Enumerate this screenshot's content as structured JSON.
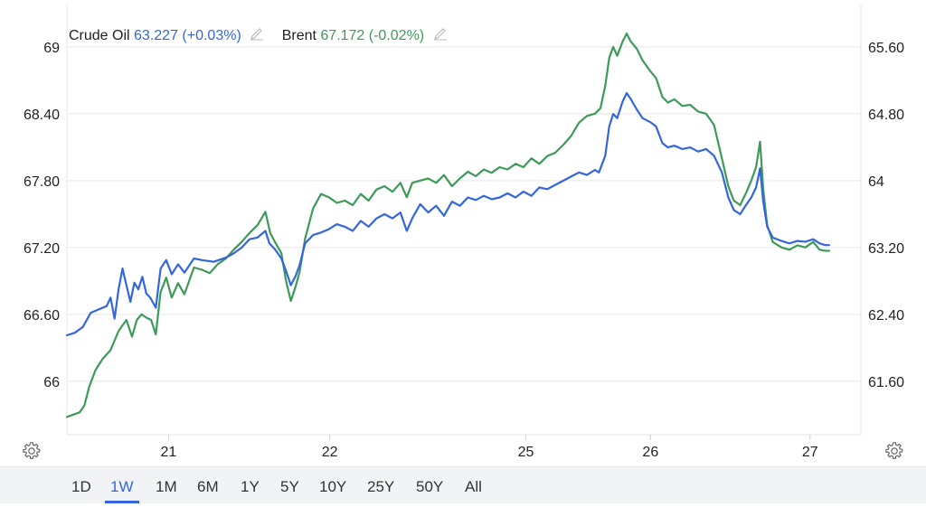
{
  "legend": {
    "series1_name": "Crude Oil",
    "series1_value": "63.227 (+0.03%)",
    "series2_name": "Brent",
    "series2_value": "67.172 (-0.02%)"
  },
  "icons": {
    "edit": "pencil-icon",
    "settings": "gear-icon"
  },
  "colors": {
    "crude": "#3366dd",
    "brent": "#3d9a59",
    "active_range": "#3366dd"
  },
  "range_buttons": [
    "1D",
    "1W",
    "1M",
    "6M",
    "1Y",
    "5Y",
    "10Y",
    "25Y",
    "50Y",
    "All"
  ],
  "active_range": "1W",
  "chart_data": {
    "type": "line",
    "title": "",
    "xlabel": "",
    "ylabel": "",
    "x_ticks": [
      {
        "label": "21",
        "t": 0.128
      },
      {
        "label": "22",
        "t": 0.331
      },
      {
        "label": "25",
        "t": 0.578
      },
      {
        "label": "26",
        "t": 0.735
      },
      {
        "label": "27",
        "t": 0.936
      }
    ],
    "y_left": {
      "range": [
        65.52,
        69.38
      ],
      "ticks": [
        66,
        66.6,
        67.2,
        67.8,
        68.4,
        69
      ],
      "tick_labels": [
        "66",
        "66.60",
        "67.20",
        "67.80",
        "68.40",
        "69"
      ]
    },
    "y_right": {
      "range": [
        60.96,
        66.11
      ],
      "ticks": [
        61.6,
        62.4,
        63.2,
        64,
        64.8,
        65.6
      ],
      "tick_labels": [
        "61.60",
        "62.40",
        "63.20",
        "64",
        "64.80",
        "65.60"
      ]
    },
    "grid": true,
    "legend_position": "top-left",
    "series": [
      {
        "name": "Crude Oil",
        "axis": "right",
        "points": [
          [
            0.0,
            62.15
          ],
          [
            0.01,
            62.18
          ],
          [
            0.02,
            62.25
          ],
          [
            0.03,
            62.42
          ],
          [
            0.04,
            62.46
          ],
          [
            0.05,
            62.5
          ],
          [
            0.055,
            62.6
          ],
          [
            0.06,
            62.35
          ],
          [
            0.065,
            62.7
          ],
          [
            0.07,
            62.95
          ],
          [
            0.075,
            62.75
          ],
          [
            0.08,
            62.55
          ],
          [
            0.085,
            62.78
          ],
          [
            0.09,
            62.7
          ],
          [
            0.095,
            62.85
          ],
          [
            0.1,
            62.65
          ],
          [
            0.105,
            62.6
          ],
          [
            0.112,
            62.48
          ],
          [
            0.118,
            62.95
          ],
          [
            0.125,
            63.05
          ],
          [
            0.132,
            62.88
          ],
          [
            0.14,
            63.0
          ],
          [
            0.148,
            62.9
          ],
          [
            0.16,
            63.07
          ],
          [
            0.17,
            63.05
          ],
          [
            0.185,
            63.03
          ],
          [
            0.2,
            63.08
          ],
          [
            0.21,
            63.13
          ],
          [
            0.22,
            63.2
          ],
          [
            0.23,
            63.3
          ],
          [
            0.24,
            63.32
          ],
          [
            0.25,
            63.4
          ],
          [
            0.255,
            63.25
          ],
          [
            0.262,
            63.18
          ],
          [
            0.27,
            63.07
          ],
          [
            0.276,
            62.92
          ],
          [
            0.282,
            62.75
          ],
          [
            0.288,
            62.86
          ],
          [
            0.293,
            62.99
          ],
          [
            0.3,
            63.25
          ],
          [
            0.31,
            63.35
          ],
          [
            0.32,
            63.38
          ],
          [
            0.33,
            63.42
          ],
          [
            0.34,
            63.48
          ],
          [
            0.35,
            63.45
          ],
          [
            0.36,
            63.4
          ],
          [
            0.37,
            63.52
          ],
          [
            0.38,
            63.45
          ],
          [
            0.39,
            63.55
          ],
          [
            0.4,
            63.6
          ],
          [
            0.41,
            63.55
          ],
          [
            0.42,
            63.62
          ],
          [
            0.428,
            63.4
          ],
          [
            0.435,
            63.55
          ],
          [
            0.445,
            63.72
          ],
          [
            0.455,
            63.62
          ],
          [
            0.465,
            63.7
          ],
          [
            0.475,
            63.58
          ],
          [
            0.485,
            63.75
          ],
          [
            0.495,
            63.7
          ],
          [
            0.505,
            63.8
          ],
          [
            0.515,
            63.77
          ],
          [
            0.525,
            63.82
          ],
          [
            0.535,
            63.78
          ],
          [
            0.545,
            63.8
          ],
          [
            0.555,
            63.85
          ],
          [
            0.565,
            63.8
          ],
          [
            0.575,
            63.87
          ],
          [
            0.585,
            63.82
          ],
          [
            0.595,
            63.92
          ],
          [
            0.605,
            63.9
          ],
          [
            0.615,
            63.95
          ],
          [
            0.625,
            64.0
          ],
          [
            0.635,
            64.05
          ],
          [
            0.645,
            64.1
          ],
          [
            0.655,
            64.07
          ],
          [
            0.665,
            64.13
          ],
          [
            0.67,
            64.1
          ],
          [
            0.678,
            64.3
          ],
          [
            0.683,
            64.65
          ],
          [
            0.688,
            64.8
          ],
          [
            0.693,
            64.75
          ],
          [
            0.7,
            64.95
          ],
          [
            0.705,
            65.05
          ],
          [
            0.71,
            64.98
          ],
          [
            0.718,
            64.85
          ],
          [
            0.725,
            64.75
          ],
          [
            0.735,
            64.7
          ],
          [
            0.742,
            64.65
          ],
          [
            0.75,
            64.45
          ],
          [
            0.757,
            64.4
          ],
          [
            0.765,
            64.42
          ],
          [
            0.775,
            64.38
          ],
          [
            0.785,
            64.4
          ],
          [
            0.795,
            64.35
          ],
          [
            0.805,
            64.38
          ],
          [
            0.815,
            64.3
          ],
          [
            0.825,
            64.1
          ],
          [
            0.833,
            63.8
          ],
          [
            0.84,
            63.65
          ],
          [
            0.848,
            63.6
          ],
          [
            0.856,
            63.72
          ],
          [
            0.862,
            63.8
          ],
          [
            0.868,
            63.92
          ],
          [
            0.873,
            64.15
          ],
          [
            0.877,
            63.75
          ],
          [
            0.882,
            63.45
          ],
          [
            0.889,
            63.32
          ],
          [
            0.9,
            63.28
          ],
          [
            0.91,
            63.25
          ],
          [
            0.92,
            63.28
          ],
          [
            0.93,
            63.27
          ],
          [
            0.94,
            63.3
          ],
          [
            0.948,
            63.25
          ],
          [
            0.955,
            63.23
          ],
          [
            0.96,
            63.23
          ]
        ]
      },
      {
        "name": "Brent",
        "axis": "left",
        "points": [
          [
            0.0,
            65.68
          ],
          [
            0.008,
            65.7
          ],
          [
            0.016,
            65.72
          ],
          [
            0.022,
            65.78
          ],
          [
            0.028,
            65.95
          ],
          [
            0.036,
            66.1
          ],
          [
            0.045,
            66.2
          ],
          [
            0.055,
            66.28
          ],
          [
            0.065,
            66.45
          ],
          [
            0.075,
            66.55
          ],
          [
            0.082,
            66.4
          ],
          [
            0.088,
            66.55
          ],
          [
            0.094,
            66.6
          ],
          [
            0.1,
            66.57
          ],
          [
            0.106,
            66.55
          ],
          [
            0.112,
            66.42
          ],
          [
            0.118,
            66.8
          ],
          [
            0.125,
            66.93
          ],
          [
            0.132,
            66.75
          ],
          [
            0.14,
            66.88
          ],
          [
            0.148,
            66.78
          ],
          [
            0.16,
            67.02
          ],
          [
            0.17,
            67.0
          ],
          [
            0.18,
            66.97
          ],
          [
            0.19,
            67.05
          ],
          [
            0.2,
            67.1
          ],
          [
            0.21,
            67.18
          ],
          [
            0.22,
            67.25
          ],
          [
            0.23,
            67.33
          ],
          [
            0.24,
            67.4
          ],
          [
            0.25,
            67.52
          ],
          [
            0.256,
            67.33
          ],
          [
            0.262,
            67.25
          ],
          [
            0.27,
            67.15
          ],
          [
            0.276,
            66.9
          ],
          [
            0.282,
            66.72
          ],
          [
            0.288,
            66.85
          ],
          [
            0.293,
            66.98
          ],
          [
            0.3,
            67.28
          ],
          [
            0.31,
            67.55
          ],
          [
            0.32,
            67.68
          ],
          [
            0.33,
            67.65
          ],
          [
            0.34,
            67.6
          ],
          [
            0.35,
            67.62
          ],
          [
            0.36,
            67.58
          ],
          [
            0.37,
            67.68
          ],
          [
            0.38,
            67.62
          ],
          [
            0.39,
            67.72
          ],
          [
            0.4,
            67.75
          ],
          [
            0.41,
            67.7
          ],
          [
            0.42,
            67.78
          ],
          [
            0.428,
            67.65
          ],
          [
            0.435,
            67.78
          ],
          [
            0.445,
            67.8
          ],
          [
            0.455,
            67.82
          ],
          [
            0.465,
            67.78
          ],
          [
            0.475,
            67.85
          ],
          [
            0.485,
            67.75
          ],
          [
            0.495,
            67.82
          ],
          [
            0.505,
            67.88
          ],
          [
            0.515,
            67.84
          ],
          [
            0.525,
            67.9
          ],
          [
            0.535,
            67.87
          ],
          [
            0.545,
            67.92
          ],
          [
            0.555,
            67.9
          ],
          [
            0.565,
            67.95
          ],
          [
            0.575,
            67.92
          ],
          [
            0.585,
            68.0
          ],
          [
            0.595,
            67.95
          ],
          [
            0.605,
            68.02
          ],
          [
            0.615,
            68.05
          ],
          [
            0.625,
            68.12
          ],
          [
            0.635,
            68.2
          ],
          [
            0.645,
            68.32
          ],
          [
            0.655,
            68.38
          ],
          [
            0.665,
            68.4
          ],
          [
            0.672,
            68.45
          ],
          [
            0.678,
            68.65
          ],
          [
            0.683,
            68.9
          ],
          [
            0.688,
            69.0
          ],
          [
            0.693,
            68.92
          ],
          [
            0.7,
            69.05
          ],
          [
            0.705,
            69.12
          ],
          [
            0.71,
            69.05
          ],
          [
            0.718,
            68.98
          ],
          [
            0.725,
            68.88
          ],
          [
            0.735,
            68.78
          ],
          [
            0.742,
            68.72
          ],
          [
            0.75,
            68.55
          ],
          [
            0.757,
            68.5
          ],
          [
            0.765,
            68.53
          ],
          [
            0.775,
            68.47
          ],
          [
            0.785,
            68.48
          ],
          [
            0.795,
            68.42
          ],
          [
            0.805,
            68.4
          ],
          [
            0.815,
            68.3
          ],
          [
            0.825,
            68.0
          ],
          [
            0.833,
            67.75
          ],
          [
            0.84,
            67.62
          ],
          [
            0.848,
            67.58
          ],
          [
            0.856,
            67.7
          ],
          [
            0.862,
            67.8
          ],
          [
            0.868,
            67.92
          ],
          [
            0.873,
            68.15
          ],
          [
            0.877,
            67.72
          ],
          [
            0.882,
            67.4
          ],
          [
            0.889,
            67.25
          ],
          [
            0.9,
            67.2
          ],
          [
            0.91,
            67.18
          ],
          [
            0.92,
            67.22
          ],
          [
            0.93,
            67.2
          ],
          [
            0.94,
            67.25
          ],
          [
            0.948,
            67.18
          ],
          [
            0.955,
            67.17
          ],
          [
            0.96,
            67.17
          ]
        ]
      }
    ]
  }
}
